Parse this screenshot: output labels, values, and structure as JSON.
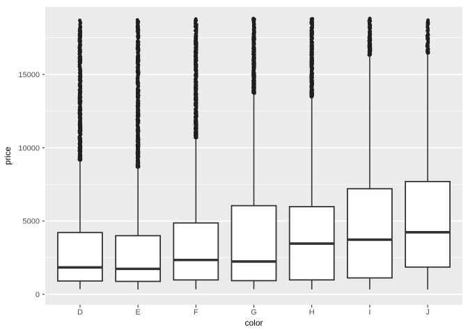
{
  "chart_data": {
    "type": "boxplot",
    "title": "",
    "xlabel": "color",
    "ylabel": "price",
    "categories": [
      "D",
      "E",
      "F",
      "G",
      "H",
      "I",
      "J"
    ],
    "y_ticks": [
      0,
      5000,
      10000,
      15000
    ],
    "y_tick_labels": [
      "0",
      "5000",
      "10000",
      "15000"
    ],
    "y_minor_gridlines": [
      2500,
      7500,
      12500,
      17500
    ],
    "ylim": [
      -700,
      19650
    ],
    "grid": "on",
    "legend": "none",
    "series": [
      {
        "category": "D",
        "min": 357,
        "q1": 911,
        "median": 1838,
        "q3": 4214,
        "whisker_high": 9160,
        "outlier_max": 18693,
        "outlier_count": 520
      },
      {
        "category": "E",
        "min": 326,
        "q1": 882,
        "median": 1739,
        "q3": 4003,
        "whisker_high": 8680,
        "outlier_max": 18731,
        "outlier_count": 520
      },
      {
        "category": "F",
        "min": 342,
        "q1": 982,
        "median": 2344,
        "q3": 4868,
        "whisker_high": 10690,
        "outlier_max": 18791,
        "outlier_count": 450
      },
      {
        "category": "G",
        "min": 354,
        "q1": 931,
        "median": 2242,
        "q3": 6048,
        "whisker_high": 13720,
        "outlier_max": 18818,
        "outlier_count": 330
      },
      {
        "category": "H",
        "min": 337,
        "q1": 984,
        "median": 3460,
        "q3": 5980,
        "whisker_high": 13470,
        "outlier_max": 18803,
        "outlier_count": 330
      },
      {
        "category": "I",
        "min": 334,
        "q1": 1120,
        "median": 3730,
        "q3": 7202,
        "whisker_high": 16320,
        "outlier_max": 18823,
        "outlier_count": 150
      },
      {
        "category": "J",
        "min": 335,
        "q1": 1860,
        "median": 4234,
        "q3": 7695,
        "whisker_high": 16440,
        "outlier_max": 18710,
        "outlier_count": 62
      }
    ],
    "colors": {
      "panel_background": "#ebebeb",
      "gridline": "#ffffff",
      "box_fill": "#ffffff",
      "box_border": "#333333",
      "outlier": "#1f1f1f",
      "axis_text": "#4d4d4d",
      "axis_title": "#000000",
      "tick_mark": "#333333"
    }
  }
}
